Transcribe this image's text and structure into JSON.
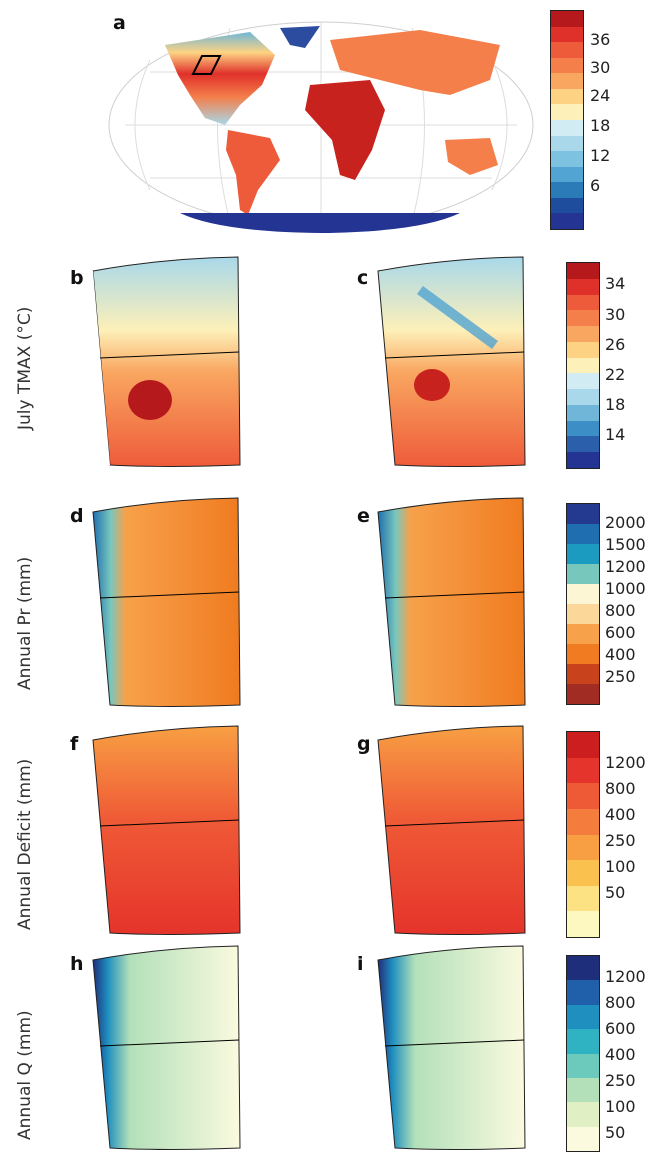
{
  "panels": [
    "a",
    "b",
    "c",
    "d",
    "e",
    "f",
    "g",
    "h",
    "i"
  ],
  "row_labels": {
    "tmax": "July TMAX (°C)",
    "pr": "Annual Pr (mm)",
    "deficit": "Annual Deficit (mm)",
    "q": "Annual Q (mm)"
  },
  "colorbars": {
    "global": {
      "ticks": [
        "36",
        "30",
        "24",
        "18",
        "12",
        "6"
      ],
      "colors": [
        "#b5191b",
        "#e0302a",
        "#ee5b3a",
        "#f47f4a",
        "#f9a660",
        "#fdd383",
        "#fdf0b8",
        "#d2ecf4",
        "#a8d8ea",
        "#7dc2e0",
        "#52a5d2",
        "#2c7bb9",
        "#1f4d9e",
        "#243493"
      ]
    },
    "tmax": {
      "ticks": [
        "34",
        "30",
        "26",
        "22",
        "18",
        "14"
      ],
      "colors": [
        "#b5191b",
        "#e0302a",
        "#ee5b3a",
        "#f47f4a",
        "#f9a660",
        "#fdd383",
        "#fdf0b8",
        "#d2ecf4",
        "#a8d8ea",
        "#6fb6d8",
        "#3b8fc6",
        "#2b5fab",
        "#243493"
      ]
    },
    "pr": {
      "ticks": [
        "2000",
        "1500",
        "1200",
        "1000",
        "800",
        "600",
        "400",
        "250"
      ],
      "colors": [
        "#243a91",
        "#1f6fb0",
        "#1a9bbf",
        "#78c7bd",
        "#fdf6d4",
        "#fbd79a",
        "#f7a14b",
        "#f07b20",
        "#c8421c",
        "#a02c23"
      ]
    },
    "deficit": {
      "ticks": [
        "1200",
        "800",
        "400",
        "250",
        "100",
        "50"
      ],
      "colors": [
        "#cc1d1f",
        "#e5342b",
        "#ef5a36",
        "#f47c3d",
        "#f89f43",
        "#fbc14f",
        "#fde284",
        "#fdf7c0"
      ]
    },
    "q": {
      "ticks": [
        "1200",
        "800",
        "600",
        "400",
        "250",
        "100",
        "50"
      ],
      "colors": [
        "#1f2e7a",
        "#2060aa",
        "#1f8fc0",
        "#2fb3c3",
        "#6ccabd",
        "#b3e0b9",
        "#e0f0c4",
        "#fbfadf"
      ]
    }
  }
}
